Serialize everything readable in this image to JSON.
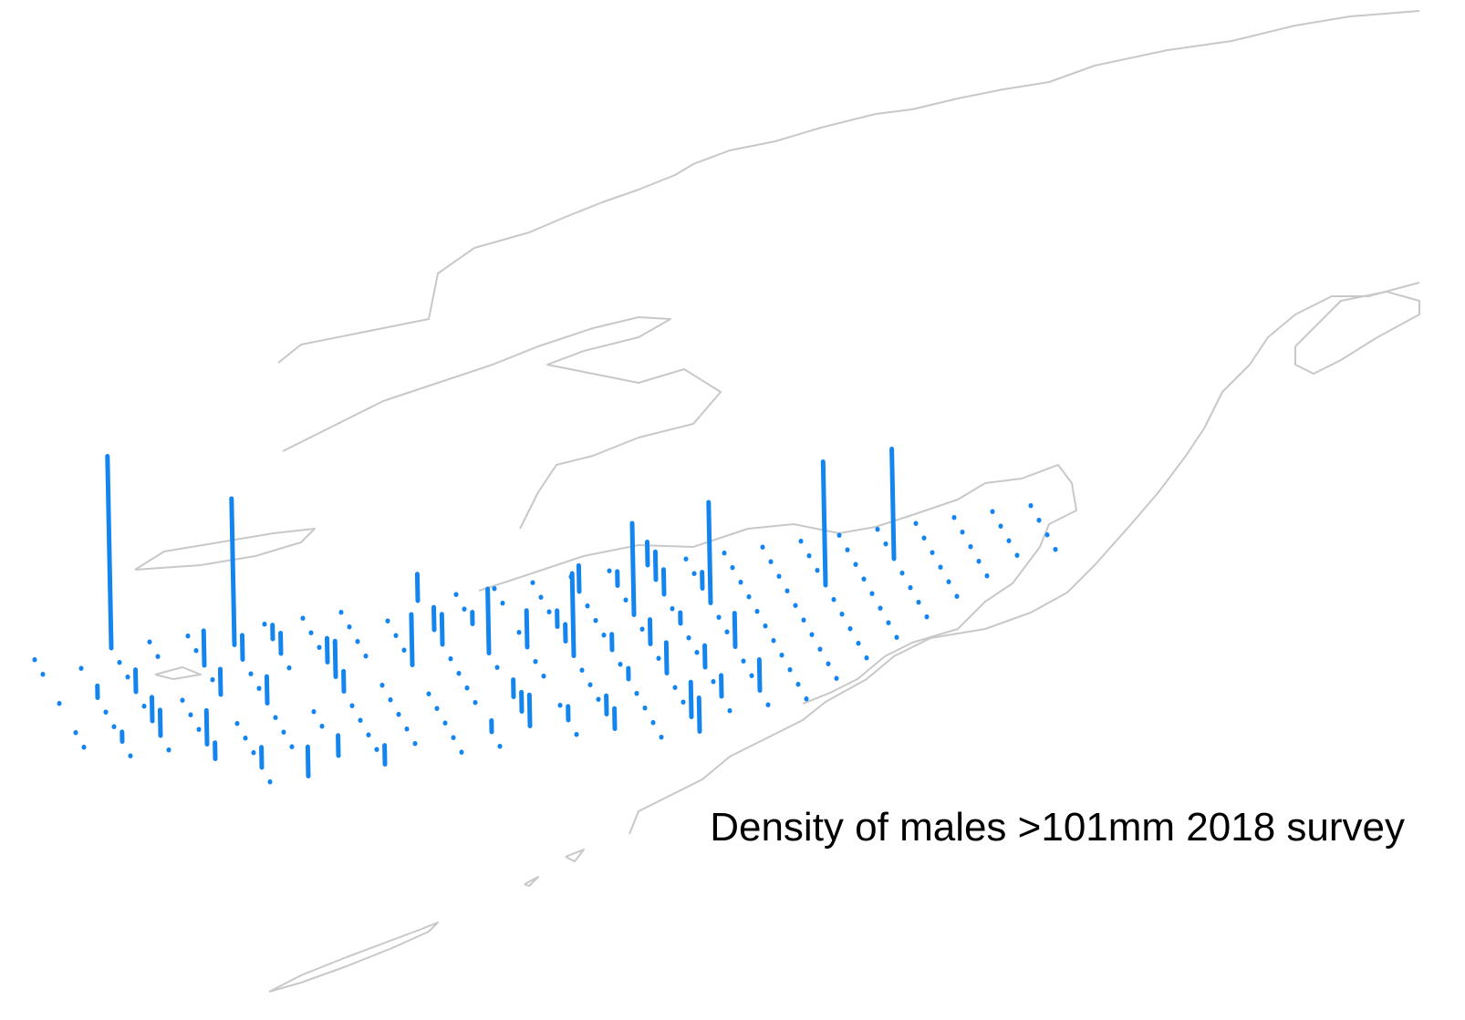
{
  "title": "Density of males >101mm 2018 survey"
}
